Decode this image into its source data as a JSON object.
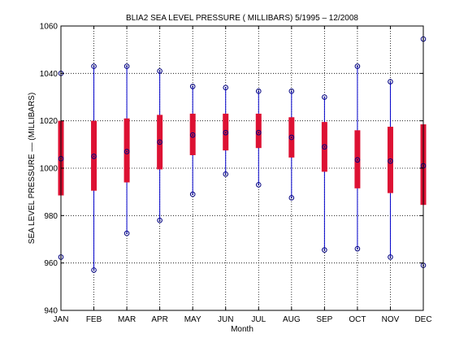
{
  "chart_data": {
    "type": "boxplot",
    "title": "BLIA2  SEA LEVEL PRESSURE ( MILLIBARS) 5/1995 – 12/2008",
    "xlabel": "Month",
    "ylabel": "SEA LEVEL PRESSURE –– (MILLIBARS)",
    "ylim": [
      940,
      1060
    ],
    "yticks": [
      940,
      960,
      980,
      1000,
      1020,
      1040,
      1060
    ],
    "grid": true,
    "categories": [
      "JAN",
      "FEB",
      "MAR",
      "APR",
      "MAY",
      "JUN",
      "JUL",
      "AUG",
      "SEP",
      "OCT",
      "NOV",
      "DEC"
    ],
    "series": [
      {
        "min": [
          962.5,
          957,
          972.5,
          978,
          989,
          997.5,
          993,
          987.5,
          965.5,
          966,
          962.5,
          959
        ],
        "q1": [
          988.5,
          990.5,
          994,
          999.5,
          1005.5,
          1007.5,
          1008.5,
          1004.5,
          998.5,
          991.5,
          989.5,
          984.5
        ],
        "median": [
          1004,
          1005,
          1007,
          1011,
          1014,
          1015,
          1015,
          1013,
          1009,
          1003.5,
          1003,
          1001
        ],
        "q3": [
          1020,
          1020,
          1021,
          1022.5,
          1023,
          1023,
          1023,
          1021.5,
          1019.5,
          1016,
          1017.5,
          1018.5
        ],
        "max": [
          1040,
          1043,
          1043,
          1041,
          1034.5,
          1034,
          1032.5,
          1032.5,
          1030,
          1043,
          1036.5,
          1054.5
        ]
      }
    ],
    "colors": {
      "whisker": "#0000cc",
      "box": "#dd1133",
      "marker": "#000080",
      "grid": "#000000"
    }
  }
}
